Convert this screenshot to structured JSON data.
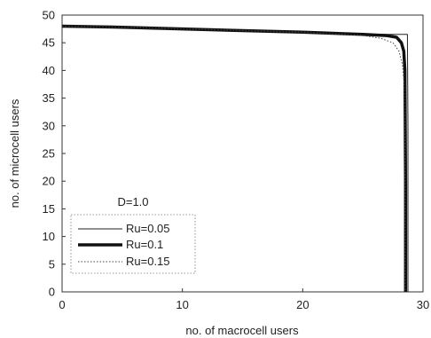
{
  "chart_data": {
    "type": "line",
    "xlabel": "no. of macrocell users",
    "ylabel": "no. of microcell users",
    "xlim": [
      0,
      30
    ],
    "ylim": [
      0,
      50
    ],
    "xticks": [
      "0",
      "10",
      "20",
      "30"
    ],
    "yticks": [
      "0",
      "5",
      "10",
      "15",
      "20",
      "25",
      "30",
      "35",
      "40",
      "45",
      "50"
    ],
    "grid": false,
    "annotation": "D=1.0",
    "legend_position": "bottom-left",
    "series": [
      {
        "name": "Ru=0.05",
        "style": "thin-solid",
        "x": [
          0,
          5,
          10,
          15,
          20,
          25,
          27,
          28,
          28.4,
          28.6,
          28.7,
          28.75,
          28.75
        ],
        "y": [
          48,
          47.8,
          47.5,
          47.2,
          46.9,
          46.6,
          46.5,
          46.5,
          46.5,
          46.5,
          46.5,
          30,
          0
        ]
      },
      {
        "name": "Ru=0.1",
        "style": "thick-solid",
        "x": [
          0,
          5,
          10,
          15,
          20,
          25,
          27,
          27.8,
          28.2,
          28.4,
          28.5,
          28.55,
          28.55
        ],
        "y": [
          48,
          47.8,
          47.5,
          47.2,
          46.9,
          46.5,
          46.3,
          46,
          45,
          43.5,
          40,
          20,
          0
        ]
      },
      {
        "name": "Ru=0.15",
        "style": "dotted",
        "x": [
          0,
          5,
          10,
          15,
          20,
          25,
          26.5,
          27.5,
          28,
          28.3,
          28.45,
          28.5,
          28.5
        ],
        "y": [
          48,
          47.8,
          47.5,
          47.2,
          46.9,
          46.3,
          45.8,
          45,
          43.5,
          41,
          37,
          25,
          0
        ]
      }
    ]
  }
}
